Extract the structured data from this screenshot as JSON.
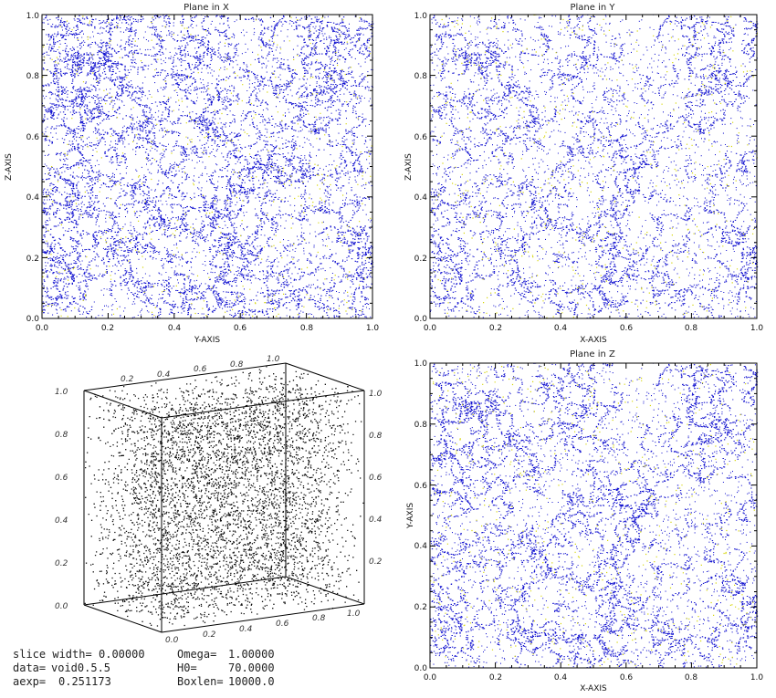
{
  "colors": {
    "dense": "#1515d0",
    "sparse": "#d6d60a",
    "particles_3d": "#111111",
    "frame": "#000000"
  },
  "chart_data": [
    {
      "type": "scatter",
      "title": "Plane in X",
      "xlabel": "Y-AXIS",
      "ylabel": "Z-AXIS",
      "xlim": [
        0,
        1
      ],
      "ylim": [
        0,
        1
      ],
      "xticks": [
        "0.0",
        "0.2",
        "0.4",
        "0.6",
        "0.8",
        "1.0"
      ],
      "yticks": [
        "0.0",
        "0.2",
        "0.4",
        "0.6",
        "0.8",
        "1.0"
      ],
      "series": [
        {
          "color": "#1515d0"
        },
        {
          "color": "#d6d60a"
        }
      ]
    },
    {
      "type": "scatter",
      "title": "Plane in Y",
      "xlabel": "X-AXIS",
      "ylabel": "Z-AXIS",
      "xlim": [
        0,
        1
      ],
      "ylim": [
        0,
        1
      ],
      "xticks": [
        "0.0",
        "0.2",
        "0.4",
        "0.6",
        "0.8",
        "1.0"
      ],
      "yticks": [
        "0.0",
        "0.2",
        "0.4",
        "0.6",
        "0.8",
        "1.0"
      ],
      "series": [
        {
          "color": "#1515d0"
        },
        {
          "color": "#d6d60a"
        }
      ]
    },
    {
      "type": "scatter",
      "title": "",
      "projection": "3d-box",
      "xlim": [
        0,
        1
      ],
      "ylim": [
        0,
        1
      ],
      "zlim": [
        0,
        1
      ],
      "zticks": [
        "0.0",
        "0.2",
        "0.4",
        "0.6",
        "0.8",
        "1.0"
      ],
      "series": [
        {
          "color": "#111111"
        }
      ]
    },
    {
      "type": "scatter",
      "title": "Plane in Z",
      "xlabel": "X-AXIS",
      "ylabel": "Y-AXIS",
      "xlim": [
        0,
        1
      ],
      "ylim": [
        0,
        1
      ],
      "xticks": [
        "0.0",
        "0.2",
        "0.4",
        "0.6",
        "0.8",
        "1.0"
      ],
      "yticks": [
        "0.0",
        "0.2",
        "0.4",
        "0.6",
        "0.8",
        "1.0"
      ],
      "series": [
        {
          "color": "#1515d0"
        },
        {
          "color": "#d6d60a"
        }
      ]
    }
  ],
  "info": [
    {
      "label": "slice width=",
      "value": "0.00000"
    },
    {
      "label": "data=",
      "value": "void0.5.5"
    },
    {
      "label": "aexp=",
      "value": "0.251173"
    },
    {
      "label": "Omega=",
      "value": "1.00000"
    },
    {
      "label": "H0=",
      "value": "70.0000"
    },
    {
      "label": "Boxlen=",
      "value": "10000.0"
    }
  ]
}
